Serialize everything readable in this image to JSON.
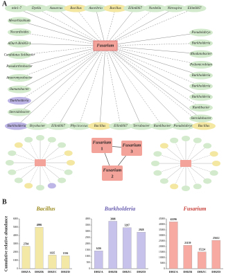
{
  "panel_labels": [
    "A",
    "B"
  ],
  "network": {
    "hub": "Fusarium",
    "top": [
      {
        "label": "mle1-7",
        "color": "#d3ebcc"
      },
      {
        "label": "Dyella",
        "color": "#d3ebcc"
      },
      {
        "label": "Azoarcus",
        "color": "#d3ebcc"
      },
      {
        "label": "Bacillus",
        "color": "#f3e7a2"
      },
      {
        "label": "Azovibrio",
        "color": "#d3ebcc"
      },
      {
        "label": "Bacillus",
        "color": "#f3e7a2"
      },
      {
        "label": "Ellin6067",
        "color": "#d3ebcc"
      },
      {
        "label": "Nordella",
        "color": "#d3ebcc"
      },
      {
        "label": "Nitrospira",
        "color": "#d3ebcc"
      },
      {
        "label": "Ellin6067",
        "color": "#d3ebcc"
      }
    ],
    "left": [
      {
        "label": "Mesorhizobium",
        "color": "#d3ebcc"
      },
      {
        "label": "Nocardioides",
        "color": "#d3ebcc"
      },
      {
        "label": "ADurb.Bin063-1",
        "color": "#d3ebcc"
      },
      {
        "label": "Candidatus Solibacter",
        "color": "#d3ebcc"
      },
      {
        "label": "Pseudarthrobacter",
        "color": "#d3ebcc"
      },
      {
        "label": "Anaeromyxobacter",
        "color": "#d3ebcc"
      },
      {
        "label": "Ilumatobacter",
        "color": "#d3ebcc"
      },
      {
        "label": "Burkholderia",
        "color": "#bcb5e6"
      },
      {
        "label": "Steroidobacter",
        "color": "#d3ebcc"
      }
    ],
    "right": [
      {
        "label": "Pseudolabrys",
        "color": "#d3ebcc"
      },
      {
        "label": "Burkholderia",
        "color": "#d3ebcc"
      },
      {
        "label": "Rhodanobacter",
        "color": "#d3ebcc"
      },
      {
        "label": "Pedomicrobium",
        "color": "#d3ebcc"
      },
      {
        "label": "Burkholderia",
        "color": "#d3ebcc"
      },
      {
        "label": "Burkholderia",
        "color": "#d3ebcc"
      },
      {
        "label": "Burkholderia",
        "color": "#d3ebcc"
      },
      {
        "label": "Ramlibacter",
        "color": "#d3ebcc"
      },
      {
        "label": "Steroidobacter",
        "color": "#d3ebcc"
      }
    ],
    "bottom": [
      {
        "label": "Burkholderia",
        "color": "#bcb5e6"
      },
      {
        "label": "Bryobacter",
        "color": "#d3ebcc"
      },
      {
        "label": "Ellin6067",
        "color": "#d3ebcc"
      },
      {
        "label": "Phycicoccus",
        "color": "#d3ebcc"
      },
      {
        "label": "Bacillus",
        "color": "#f3e7a2"
      },
      {
        "label": "Ellin6067",
        "color": "#d3ebcc"
      },
      {
        "label": "Terrabacter",
        "color": "#d3ebcc"
      },
      {
        "label": "Ramlibacter",
        "color": "#d3ebcc"
      },
      {
        "label": "Pseudolabrys",
        "color": "#d3ebcc"
      },
      {
        "label": "Bacillus",
        "color": "#f3e7a2"
      }
    ],
    "modules": [
      {
        "name": "Fusarium",
        "number": "1"
      },
      {
        "name": "Fusarium",
        "number": "2"
      },
      {
        "name": "Fusarium",
        "number": "3"
      }
    ]
  },
  "chart_data": [
    {
      "type": "bar",
      "title": "Bacillus",
      "title_color": "#9a8a1c",
      "ylabel": "Cumulative relative abundance",
      "categories": [
        "DHZA",
        "DHZB",
        "DHZC",
        "DHZD"
      ],
      "values": [
        2704,
        4986,
        1635,
        1556
      ],
      "color": "#f4e8a6",
      "ylim": [
        0,
        6000
      ],
      "yticks": [
        0,
        1000,
        2000,
        3000,
        4000,
        5000,
        6000
      ]
    },
    {
      "type": "bar",
      "title": "Burkholderia",
      "title_color": "#6a5fb0",
      "categories": [
        "DHZA",
        "DHZB",
        "DHZC",
        "DHZD"
      ],
      "values": [
        1436,
        3808,
        3297,
        2928
      ],
      "color": "#c6c2ec",
      "ylim": [
        0,
        4000
      ],
      "yticks": [
        0,
        500,
        1000,
        1500,
        2000,
        2500,
        3000,
        3500,
        4000
      ]
    },
    {
      "type": "bar",
      "title": "Fusarium",
      "title_color": "#c8403a",
      "categories": [
        "DHZA",
        "DHZB",
        "DHZC",
        "DHZD"
      ],
      "values": [
        42296,
        21159,
        15224,
        25612
      ],
      "color": "#f6aaa2",
      "ylim": [
        0,
        45000
      ],
      "yticks": [
        0,
        5000,
        10000,
        15000,
        20000,
        25000,
        30000,
        35000,
        40000,
        45000
      ]
    }
  ]
}
